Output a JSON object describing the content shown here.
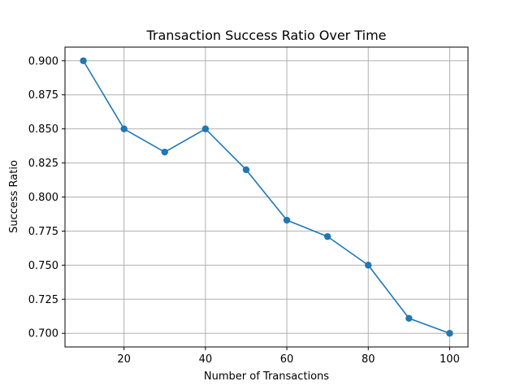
{
  "chart_data": {
    "type": "line",
    "title": "Transaction Success Ratio Over Time",
    "xlabel": "Number of Transactions",
    "ylabel": "Success Ratio",
    "x": [
      10,
      20,
      30,
      40,
      50,
      60,
      70,
      80,
      90,
      100
    ],
    "series": [
      {
        "values": [
          0.9,
          0.85,
          0.833,
          0.85,
          0.82,
          0.783,
          0.771,
          0.75,
          0.711,
          0.7
        ],
        "color": "#1f77b4",
        "marker": "circle"
      }
    ],
    "xlim": [
      5.5,
      104.5
    ],
    "ylim": [
      0.69,
      0.91
    ],
    "xticks": [
      20,
      40,
      60,
      80,
      100
    ],
    "yticks": [
      0.7,
      0.725,
      0.75,
      0.775,
      0.8,
      0.825,
      0.85,
      0.875,
      0.9
    ],
    "xtick_labels": [
      "20",
      "40",
      "60",
      "80",
      "100"
    ],
    "ytick_labels": [
      "0.700",
      "0.725",
      "0.750",
      "0.775",
      "0.800",
      "0.825",
      "0.850",
      "0.875",
      "0.900"
    ],
    "grid": true,
    "legend": false
  }
}
